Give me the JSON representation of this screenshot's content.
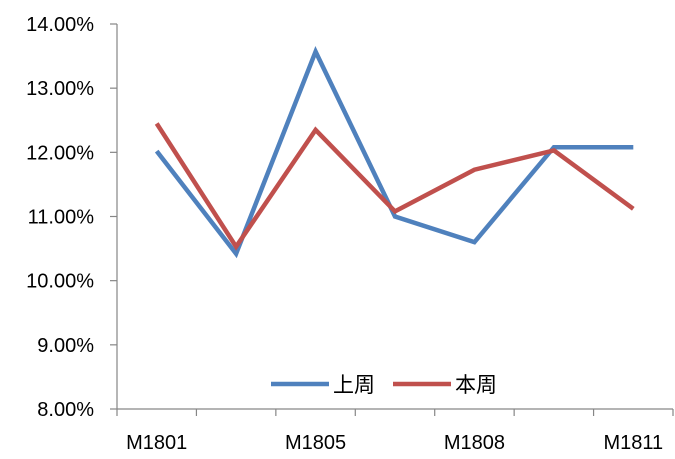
{
  "chart_data": {
    "type": "line",
    "title": "",
    "xlabel": "",
    "ylabel": "",
    "categories": [
      "M1801",
      "",
      "M1805",
      "",
      "M1808",
      "",
      "M1811"
    ],
    "x_tick_labels": [
      "M1801",
      "M1805",
      "M1808",
      "M1811"
    ],
    "y_tick_labels": [
      "8.00%",
      "9.00%",
      "10.00%",
      "11.00%",
      "12.00%",
      "13.00%",
      "14.00%"
    ],
    "ylim": [
      0.08,
      0.14
    ],
    "grid": false,
    "legend_position": "bottom-right inside plot",
    "series": [
      {
        "name": "上周",
        "color": "#4F81BD",
        "values": [
          0.1202,
          0.1042,
          0.1357,
          0.11,
          0.106,
          0.1208,
          0.1208
        ]
      },
      {
        "name": "本周",
        "color": "#C0504D",
        "values": [
          0.1245,
          0.1053,
          0.1235,
          0.1108,
          0.1173,
          0.1203,
          0.1112
        ]
      }
    ]
  }
}
